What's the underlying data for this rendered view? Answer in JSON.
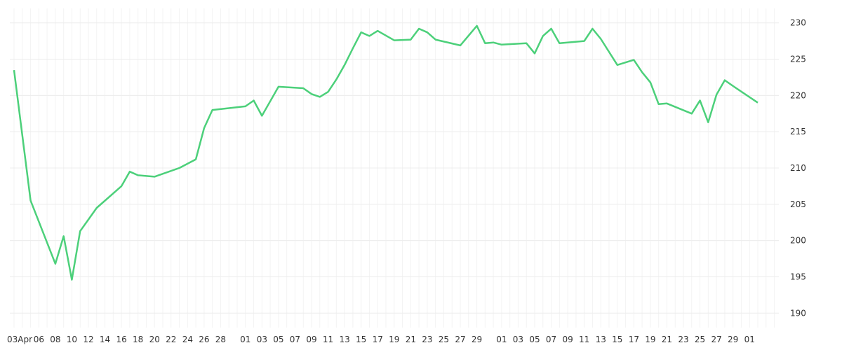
{
  "chart_data": {
    "type": "line",
    "title": "",
    "xlabel": "",
    "ylabel": "",
    "line_color": "#4cd07a",
    "grid": true,
    "y_axis_position": "right",
    "ylim": [
      188,
      232
    ],
    "y_ticks": [
      190,
      195,
      200,
      205,
      210,
      215,
      220,
      225,
      230
    ],
    "x_tick_labels": [
      "03Apr",
      "06",
      "08",
      "10",
      "12",
      "14",
      "16",
      "18",
      "20",
      "22",
      "24",
      "26",
      "28",
      "01",
      "03",
      "05",
      "07",
      "09",
      "11",
      "13",
      "15",
      "17",
      "19",
      "21",
      "23",
      "25",
      "27",
      "29",
      "01",
      "03",
      "05",
      "07",
      "09",
      "11",
      "13",
      "15",
      "17",
      "19",
      "21",
      "23",
      "25",
      "27",
      "29",
      "01"
    ],
    "x_tick_days": [
      0,
      3,
      5,
      7,
      9,
      11,
      13,
      15,
      17,
      19,
      21,
      23,
      25,
      28,
      30,
      32,
      34,
      36,
      38,
      40,
      42,
      44,
      46,
      48,
      50,
      52,
      54,
      56,
      59,
      61,
      63,
      65,
      67,
      69,
      71,
      73,
      75,
      77,
      79,
      81,
      83,
      85,
      87,
      89
    ],
    "x_range_days": [
      0,
      90
    ],
    "series": [
      {
        "x_days": [
          0,
          2,
          5,
          6,
          7,
          8,
          10,
          13,
          14,
          15,
          17,
          20,
          22,
          23,
          24,
          28,
          29,
          30,
          32,
          35,
          36,
          37,
          38,
          39,
          40,
          41,
          42,
          43,
          44,
          46,
          48,
          49,
          50,
          51,
          54,
          56,
          57,
          58,
          59,
          62,
          63,
          64,
          65,
          66,
          69,
          70,
          71,
          73,
          75,
          76,
          77,
          78,
          79,
          82,
          83,
          84,
          85,
          86,
          87,
          90
        ],
        "y": [
          223.5,
          205.5,
          196.8,
          200.6,
          194.6,
          201.3,
          204.5,
          207.5,
          209.5,
          209.0,
          208.8,
          210.0,
          211.2,
          215.5,
          218.0,
          218.5,
          219.3,
          217.2,
          221.2,
          221.0,
          220.2,
          219.8,
          220.5,
          222.2,
          224.2,
          226.5,
          228.7,
          228.2,
          228.9,
          227.6,
          227.7,
          229.2,
          228.7,
          227.7,
          226.9,
          229.6,
          227.2,
          227.3,
          227.0,
          227.2,
          225.8,
          228.2,
          229.2,
          227.2,
          227.5,
          229.2,
          227.8,
          224.2,
          224.9,
          223.2,
          221.8,
          218.8,
          218.9,
          217.5,
          219.3,
          216.3,
          220.1,
          222.1,
          221.3,
          219.0
        ]
      }
    ]
  }
}
